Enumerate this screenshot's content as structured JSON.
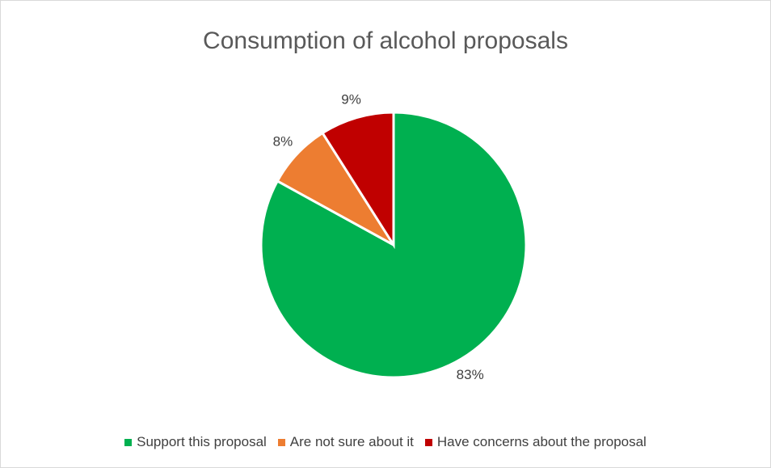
{
  "chart_data": {
    "type": "pie",
    "title": "Consumption of alcohol proposals",
    "start_angle_deg": 0,
    "direction": "clockwise",
    "legend_position": "bottom",
    "slices": [
      {
        "name": "Support this proposal",
        "value": 83,
        "label": "83%",
        "color": "#00b050"
      },
      {
        "name": "Are not sure about it",
        "value": 8,
        "label": "8%",
        "color": "#ed7d31"
      },
      {
        "name": "Have concerns about the proposal",
        "value": 9,
        "label": "9%",
        "color": "#c00000"
      }
    ]
  }
}
